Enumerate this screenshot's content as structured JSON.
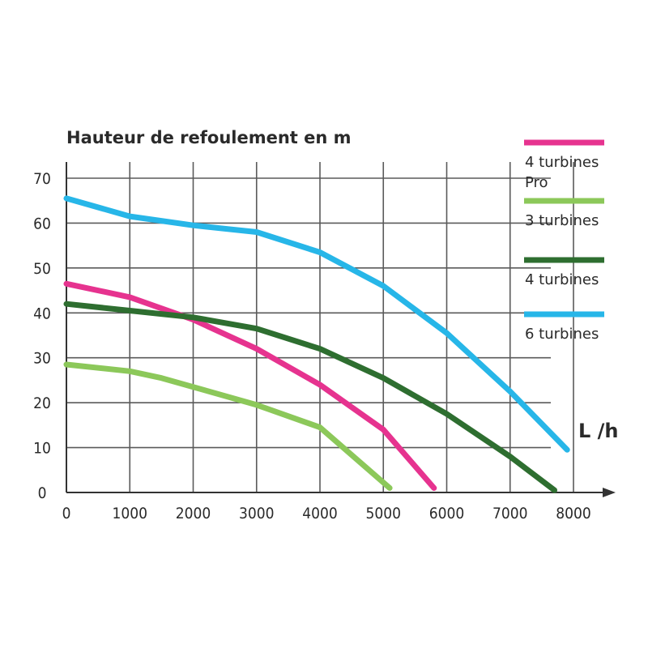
{
  "chart_data": {
    "type": "line",
    "ylabel": "Hauteur de refoulement en m",
    "xlabel": "L /h",
    "xlim": [
      0,
      8000
    ],
    "ylim": [
      0,
      70
    ],
    "x_ticks": [
      "0",
      "1000",
      "2000",
      "3000",
      "4000",
      "5000",
      "6000",
      "7000",
      "8000"
    ],
    "y_ticks": [
      "0",
      "10",
      "20",
      "30",
      "40",
      "50",
      "60",
      "70"
    ],
    "grid": true,
    "legend_position": "right",
    "series": [
      {
        "name_lines": [
          "4 turbines",
          "Pro"
        ],
        "color": "#e6338f",
        "points": [
          [
            0,
            46.5
          ],
          [
            1000,
            43.5
          ],
          [
            2000,
            38.5
          ],
          [
            3000,
            32
          ],
          [
            4000,
            24
          ],
          [
            5000,
            14
          ],
          [
            5800,
            1
          ]
        ]
      },
      {
        "name_lines": [
          "3 turbines"
        ],
        "color": "#8cc85a",
        "points": [
          [
            0,
            28.5
          ],
          [
            1000,
            27
          ],
          [
            1500,
            25.5
          ],
          [
            2000,
            23.5
          ],
          [
            3000,
            19.5
          ],
          [
            4000,
            14.5
          ],
          [
            5100,
            1
          ]
        ]
      },
      {
        "name_lines": [
          "4 turbines"
        ],
        "color": "#2e6e30",
        "points": [
          [
            0,
            42
          ],
          [
            1000,
            40.5
          ],
          [
            2000,
            39
          ],
          [
            3000,
            36.5
          ],
          [
            4000,
            32
          ],
          [
            5000,
            25.5
          ],
          [
            6000,
            17.5
          ],
          [
            7000,
            8
          ],
          [
            7700,
            0.5
          ]
        ]
      },
      {
        "name_lines": [
          "6 turbines"
        ],
        "color": "#27b6e8",
        "points": [
          [
            0,
            65.5
          ],
          [
            1000,
            61.5
          ],
          [
            2000,
            59.5
          ],
          [
            3000,
            58
          ],
          [
            4000,
            53.5
          ],
          [
            5000,
            46
          ],
          [
            6000,
            35.5
          ],
          [
            7000,
            22.5
          ],
          [
            7900,
            9.5
          ]
        ]
      }
    ]
  }
}
